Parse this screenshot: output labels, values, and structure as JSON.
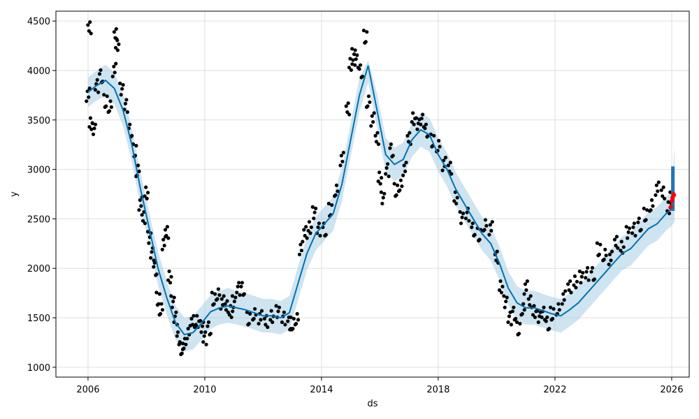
{
  "chart_data": {
    "type": "line",
    "title": "",
    "xlabel": "ds",
    "ylabel": "y",
    "x_range": [
      2004.9,
      2026.6
    ],
    "ylim": [
      900,
      4600
    ],
    "grid": true,
    "legend": "none",
    "x_ticks": [
      {
        "value": 2006,
        "label": "2006"
      },
      {
        "value": 2010,
        "label": "2010"
      },
      {
        "value": 2014,
        "label": "2014"
      },
      {
        "value": 2018,
        "label": "2018"
      },
      {
        "value": 2022,
        "label": "2022"
      },
      {
        "value": 2026,
        "label": "2026"
      }
    ],
    "y_ticks": [
      {
        "value": 1000,
        "label": "1000"
      },
      {
        "value": 1500,
        "label": "1500"
      },
      {
        "value": 2000,
        "label": "2000"
      },
      {
        "value": 2500,
        "label": "2500"
      },
      {
        "value": 3000,
        "label": "3000"
      },
      {
        "value": 3500,
        "label": "3500"
      },
      {
        "value": 4000,
        "label": "4000"
      },
      {
        "value": 4500,
        "label": "4500"
      }
    ],
    "colors": {
      "actual": "#000000",
      "forecast": "#0072B2",
      "interval": "#A6CEE3",
      "future": "#1f77b4",
      "highlight": "#ff0000"
    },
    "series": [
      {
        "role": "actual",
        "style": "scatter",
        "x": [
          2006.0,
          2006.05,
          2006.1,
          2006.2,
          2006.3,
          2006.45,
          2006.6,
          2006.75,
          2006.9,
          2006.95,
          2007.0,
          2007.15,
          2007.3,
          2007.45,
          2007.6,
          2007.7,
          2007.8,
          2007.9,
          2008.0,
          2008.1,
          2008.2,
          2008.3,
          2008.4,
          2008.5,
          2008.6,
          2008.7,
          2008.8,
          2008.9,
          2009.0,
          2009.1,
          2009.2,
          2009.3,
          2009.45,
          2009.6,
          2009.75,
          2009.9,
          2010.0,
          2010.15,
          2010.3,
          2010.45,
          2010.6,
          2010.75,
          2010.9,
          2011.0,
          2011.15,
          2011.3,
          2011.5,
          2011.7,
          2011.9,
          2012.1,
          2012.3,
          2012.5,
          2012.7,
          2012.9,
          2013.0,
          2013.15,
          2013.3,
          2013.45,
          2013.6,
          2013.75,
          2013.9,
          2014.1,
          2014.3,
          2014.5,
          2014.7,
          2014.9,
          2015.0,
          2015.1,
          2015.2,
          2015.35,
          2015.5,
          2015.6,
          2015.75,
          2015.9,
          2016.0,
          2016.1,
          2016.25,
          2016.4,
          2016.55,
          2016.7,
          2016.85,
          2017.0,
          2017.15,
          2017.3,
          2017.45,
          2017.6,
          2017.8,
          2018.0,
          2018.2,
          2018.4,
          2018.6,
          2018.8,
          2019.0,
          2019.2,
          2019.4,
          2019.6,
          2019.8,
          2020.0,
          2020.15,
          2020.3,
          2020.45,
          2020.6,
          2020.75,
          2020.9,
          2021.0,
          2021.15,
          2021.3,
          2021.45,
          2021.6,
          2021.75,
          2021.9,
          2022.1,
          2022.3,
          2022.5,
          2022.7,
          2022.9,
          2023.1,
          2023.3,
          2023.5,
          2023.7,
          2023.9,
          2024.1,
          2024.3,
          2024.5,
          2024.7,
          2024.9,
          2025.1,
          2025.3,
          2025.5,
          2025.7,
          2025.9,
          2026.0
        ],
        "y": [
          3750,
          4420,
          3450,
          3400,
          3850,
          3950,
          3700,
          3650,
          4000,
          4350,
          4250,
          3800,
          3650,
          3400,
          3200,
          3000,
          2650,
          2500,
          2750,
          2300,
          2150,
          2000,
          1700,
          1600,
          2250,
          2350,
          1900,
          1650,
          1500,
          1300,
          1200,
          1250,
          1350,
          1450,
          1450,
          1400,
          1300,
          1400,
          1700,
          1750,
          1650,
          1600,
          1550,
          1650,
          1800,
          1800,
          1500,
          1550,
          1500,
          1450,
          1500,
          1550,
          1500,
          1450,
          1450,
          1500,
          2200,
          2350,
          2400,
          2550,
          2400,
          2400,
          2600,
          2800,
          3100,
          3600,
          4050,
          4150,
          4100,
          4000,
          4350,
          3700,
          3500,
          3300,
          2900,
          2700,
          3000,
          3200,
          2800,
          2850,
          3000,
          3300,
          3500,
          3450,
          3500,
          3400,
          3300,
          3250,
          3050,
          3000,
          2700,
          2500,
          2550,
          2400,
          2350,
          2450,
          2400,
          2100,
          1800,
          1650,
          1500,
          1550,
          1400,
          1600,
          1800,
          1650,
          1550,
          1500,
          1550,
          1450,
          1550,
          1600,
          1700,
          1800,
          1850,
          1900,
          1950,
          1950,
          2200,
          2150,
          2100,
          2250,
          2200,
          2350,
          2400,
          2450,
          2550,
          2650,
          2800,
          2750,
          2600,
          2700
        ]
      },
      {
        "role": "forecast",
        "style": "line",
        "x": [
          2006.0,
          2006.3,
          2006.6,
          2006.9,
          2007.2,
          2007.5,
          2007.8,
          2008.1,
          2008.4,
          2008.7,
          2009.0,
          2009.3,
          2009.6,
          2009.9,
          2010.2,
          2010.5,
          2010.8,
          2011.1,
          2011.4,
          2011.7,
          2012.0,
          2012.3,
          2012.6,
          2012.9,
          2013.2,
          2013.5,
          2013.8,
          2014.1,
          2014.4,
          2014.7,
          2015.0,
          2015.3,
          2015.6,
          2015.9,
          2016.2,
          2016.5,
          2016.8,
          2017.1,
          2017.4,
          2017.7,
          2018.0,
          2018.3,
          2018.6,
          2018.9,
          2019.2,
          2019.5,
          2019.8,
          2020.1,
          2020.4,
          2020.7,
          2021.0,
          2021.3,
          2021.6,
          2021.9,
          2022.2,
          2022.5,
          2022.8,
          2023.1,
          2023.4,
          2023.7,
          2024.0,
          2024.3,
          2024.6,
          2024.9,
          2025.2,
          2025.5,
          2025.8,
          2026.0
        ],
        "y": [
          3780,
          3850,
          3900,
          3820,
          3600,
          3250,
          2800,
          2400,
          2000,
          1700,
          1450,
          1330,
          1350,
          1450,
          1560,
          1600,
          1620,
          1600,
          1580,
          1550,
          1520,
          1520,
          1500,
          1550,
          1850,
          2150,
          2350,
          2450,
          2550,
          2850,
          3300,
          3750,
          4050,
          3600,
          3150,
          3050,
          3100,
          3300,
          3400,
          3350,
          3150,
          3000,
          2800,
          2650,
          2500,
          2350,
          2250,
          2050,
          1800,
          1650,
          1600,
          1600,
          1570,
          1540,
          1520,
          1580,
          1650,
          1750,
          1850,
          1950,
          2050,
          2150,
          2200,
          2300,
          2400,
          2450,
          2550,
          2600
        ]
      },
      {
        "role": "interval-upper",
        "style": "band",
        "x": [
          2006.0,
          2006.3,
          2006.6,
          2006.9,
          2007.2,
          2007.5,
          2007.8,
          2008.1,
          2008.4,
          2008.7,
          2009.0,
          2009.3,
          2009.6,
          2009.9,
          2010.2,
          2010.5,
          2010.8,
          2011.1,
          2011.4,
          2011.7,
          2012.0,
          2012.3,
          2012.6,
          2012.9,
          2013.2,
          2013.5,
          2013.8,
          2014.1,
          2014.4,
          2014.7,
          2015.0,
          2015.3,
          2015.6,
          2015.9,
          2016.2,
          2016.5,
          2016.8,
          2017.1,
          2017.4,
          2017.7,
          2018.0,
          2018.3,
          2018.6,
          2018.9,
          2019.2,
          2019.5,
          2019.8,
          2020.1,
          2020.4,
          2020.7,
          2021.0,
          2021.3,
          2021.6,
          2021.9,
          2022.2,
          2022.5,
          2022.8,
          2023.1,
          2023.4,
          2023.7,
          2024.0,
          2024.3,
          2024.6,
          2024.9,
          2025.2,
          2025.5,
          2025.8,
          2026.0,
          2026.1
        ],
        "y": [
          3930,
          4000,
          4060,
          3980,
          3760,
          3420,
          2970,
          2560,
          2170,
          1870,
          1620,
          1500,
          1520,
          1620,
          1730,
          1770,
          1800,
          1770,
          1750,
          1720,
          1690,
          1690,
          1670,
          1720,
          2020,
          2320,
          2520,
          2620,
          2720,
          3020,
          3470,
          3920,
          4100,
          3770,
          3320,
          3220,
          3270,
          3470,
          3570,
          3520,
          3320,
          3170,
          2970,
          2820,
          2670,
          2520,
          2420,
          2220,
          1970,
          1820,
          1770,
          1770,
          1740,
          1710,
          1690,
          1750,
          1820,
          1920,
          2020,
          2120,
          2220,
          2320,
          2370,
          2470,
          2570,
          2620,
          2720,
          2770,
          3240
        ]
      },
      {
        "role": "interval-lower",
        "style": "band",
        "x": [
          2006.0,
          2006.3,
          2006.6,
          2006.9,
          2007.2,
          2007.5,
          2007.8,
          2008.1,
          2008.4,
          2008.7,
          2009.0,
          2009.3,
          2009.6,
          2009.9,
          2010.2,
          2010.5,
          2010.8,
          2011.1,
          2011.4,
          2011.7,
          2012.0,
          2012.3,
          2012.6,
          2012.9,
          2013.2,
          2013.5,
          2013.8,
          2014.1,
          2014.4,
          2014.7,
          2015.0,
          2015.3,
          2015.6,
          2015.9,
          2016.2,
          2016.5,
          2016.8,
          2017.1,
          2017.4,
          2017.7,
          2018.0,
          2018.3,
          2018.6,
          2018.9,
          2019.2,
          2019.5,
          2019.8,
          2020.1,
          2020.4,
          2020.7,
          2021.0,
          2021.3,
          2021.6,
          2021.9,
          2022.2,
          2022.5,
          2022.8,
          2023.1,
          2023.4,
          2023.7,
          2024.0,
          2024.3,
          2024.6,
          2024.9,
          2025.2,
          2025.5,
          2025.8,
          2026.0,
          2026.1
        ],
        "y": [
          3630,
          3700,
          3740,
          3660,
          3440,
          3080,
          2630,
          2240,
          1830,
          1530,
          1280,
          1160,
          1180,
          1280,
          1390,
          1430,
          1450,
          1430,
          1410,
          1380,
          1350,
          1350,
          1330,
          1380,
          1680,
          1980,
          2180,
          2280,
          2380,
          2680,
          3130,
          3580,
          3880,
          3430,
          2980,
          2880,
          2930,
          3130,
          3230,
          3180,
          2980,
          2830,
          2630,
          2480,
          2330,
          2180,
          2080,
          1880,
          1630,
          1480,
          1430,
          1430,
          1400,
          1370,
          1350,
          1410,
          1480,
          1580,
          1680,
          1780,
          1880,
          1980,
          2030,
          2130,
          2230,
          2280,
          2380,
          2430,
          2470
        ]
      },
      {
        "role": "future-forecast",
        "style": "band",
        "x": [
          2025.98,
          2026.1
        ],
        "y_low": [
          2580,
          2580
        ],
        "y_high": [
          3030,
          3030
        ]
      },
      {
        "role": "highlight",
        "style": "scatter",
        "x": [
          2025.97,
          2026.0,
          2026.03,
          2026.06,
          2026.08
        ],
        "y": [
          2620,
          2680,
          2710,
          2750,
          2740
        ]
      }
    ]
  }
}
